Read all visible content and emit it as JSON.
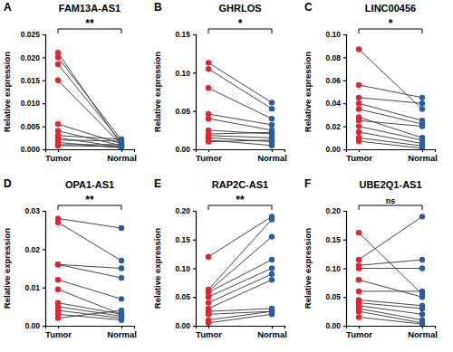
{
  "chart_data": [
    {
      "type": "paired",
      "panel": "A",
      "title": "FAM13A-AS1",
      "annotation": "**",
      "y_label": "Relative expression",
      "categories": [
        "Tumor",
        "Normal"
      ],
      "colors": [
        "#e8232d",
        "#2a5caa"
      ],
      "values": [
        [
          0.021,
          0.001
        ],
        [
          0.02,
          0.002
        ],
        [
          0.0185,
          0.0015
        ],
        [
          0.015,
          0.001
        ],
        [
          0.0055,
          0.0012
        ],
        [
          0.004,
          0.0008
        ],
        [
          0.003,
          0.0022
        ],
        [
          0.0025,
          0.0005
        ],
        [
          0.002,
          0.0018
        ],
        [
          0.0015,
          0.0003
        ],
        [
          0.001,
          0.001
        ],
        [
          0.0008,
          0.0006
        ]
      ],
      "ylim": [
        0,
        0.025
      ],
      "yticks": [
        {
          "value": 0,
          "label": "0.000"
        },
        {
          "value": 0.005,
          "label": "0.005"
        },
        {
          "value": 0.01,
          "label": "0.010"
        },
        {
          "value": 0.015,
          "label": "0.015"
        },
        {
          "value": 0.02,
          "label": "0.020"
        },
        {
          "value": 0.025,
          "label": "0.025"
        }
      ]
    },
    {
      "type": "paired",
      "panel": "B",
      "title": "GHRLOS",
      "annotation": "*",
      "y_label": "Relative expression",
      "categories": [
        "Tumor",
        "Normal"
      ],
      "colors": [
        "#e8232d",
        "#2a5caa"
      ],
      "values": [
        [
          0.113,
          0.061
        ],
        [
          0.105,
          0.053
        ],
        [
          0.08,
          0.04
        ],
        [
          0.046,
          0.032
        ],
        [
          0.04,
          0.025
        ],
        [
          0.025,
          0.02
        ],
        [
          0.02,
          0.022
        ],
        [
          0.018,
          0.015
        ],
        [
          0.015,
          0.01
        ],
        [
          0.012,
          0.005
        ],
        [
          0.01,
          0.012
        ]
      ],
      "ylim": [
        0,
        0.15
      ],
      "yticks": [
        {
          "value": 0,
          "label": "0.00"
        },
        {
          "value": 0.05,
          "label": "0.05"
        },
        {
          "value": 0.1,
          "label": "0.10"
        },
        {
          "value": 0.15,
          "label": "0.15"
        }
      ]
    },
    {
      "type": "paired",
      "panel": "C",
      "title": "LINC00456",
      "annotation": "*",
      "y_label": "Relative expression",
      "categories": [
        "Tumor",
        "Normal"
      ],
      "colors": [
        "#e8232d",
        "#2a5caa"
      ],
      "values": [
        [
          0.087,
          0.035
        ],
        [
          0.056,
          0.045
        ],
        [
          0.045,
          0.04
        ],
        [
          0.04,
          0.025
        ],
        [
          0.035,
          0.022
        ],
        [
          0.028,
          0.01
        ],
        [
          0.025,
          0.02
        ],
        [
          0.02,
          0.008
        ],
        [
          0.015,
          0.005
        ],
        [
          0.01,
          0.003
        ],
        [
          0.007,
          0.001
        ]
      ],
      "ylim": [
        0,
        0.1
      ],
      "yticks": [
        {
          "value": 0,
          "label": "0.00"
        },
        {
          "value": 0.02,
          "label": "0.02"
        },
        {
          "value": 0.04,
          "label": "0.04"
        },
        {
          "value": 0.06,
          "label": "0.06"
        },
        {
          "value": 0.08,
          "label": "0.08"
        },
        {
          "value": 0.1,
          "label": "0.10"
        }
      ]
    },
    {
      "type": "paired",
      "panel": "D",
      "title": "OPA1-AS1",
      "annotation": "**",
      "y_label": "Relative expression",
      "categories": [
        "Tumor",
        "Normal"
      ],
      "colors": [
        "#e8232d",
        "#2a5caa"
      ],
      "values": [
        [
          0.028,
          0.0255
        ],
        [
          0.027,
          0.017
        ],
        [
          0.016,
          0.015
        ],
        [
          0.016,
          0.0125
        ],
        [
          0.012,
          0.007
        ],
        [
          0.0095,
          0.003
        ],
        [
          0.006,
          0.003
        ],
        [
          0.005,
          0.0025
        ],
        [
          0.004,
          0.002
        ],
        [
          0.003,
          0.0015
        ],
        [
          0.002,
          0.004
        ]
      ],
      "ylim": [
        0,
        0.03
      ],
      "yticks": [
        {
          "value": 0,
          "label": "0.00"
        },
        {
          "value": 0.01,
          "label": "0.01"
        },
        {
          "value": 0.02,
          "label": "0.02"
        },
        {
          "value": 0.03,
          "label": "0.03"
        }
      ]
    },
    {
      "type": "paired",
      "panel": "E",
      "title": "RAP2C-AS1",
      "annotation": "**",
      "y_label": "Relative expression",
      "categories": [
        "Tumor",
        "Normal"
      ],
      "colors": [
        "#e8232d",
        "#2a5caa"
      ],
      "values": [
        [
          0.12,
          0.19
        ],
        [
          0.063,
          0.185
        ],
        [
          0.06,
          0.155
        ],
        [
          0.058,
          0.115
        ],
        [
          0.05,
          0.1
        ],
        [
          0.04,
          0.09
        ],
        [
          0.03,
          0.08
        ],
        [
          0.025,
          0.03
        ],
        [
          0.02,
          0.025
        ],
        [
          0.01,
          0.025
        ],
        [
          0.005,
          0.02
        ]
      ],
      "ylim": [
        0,
        0.2
      ],
      "yticks": [
        {
          "value": 0,
          "label": "0.00"
        },
        {
          "value": 0.05,
          "label": "0.05"
        },
        {
          "value": 0.1,
          "label": "0.10"
        },
        {
          "value": 0.15,
          "label": "0.15"
        },
        {
          "value": 0.2,
          "label": "0.20"
        }
      ]
    },
    {
      "type": "paired",
      "panel": "F",
      "title": "UBE2Q1-AS1",
      "annotation": "ns",
      "y_label": "Relative expression",
      "categories": [
        "Tumor",
        "Normal"
      ],
      "colors": [
        "#e8232d",
        "#2a5caa"
      ],
      "values": [
        [
          0.162,
          0.055
        ],
        [
          0.115,
          0.19
        ],
        [
          0.105,
          0.115
        ],
        [
          0.1,
          0.1
        ],
        [
          0.08,
          0.05
        ],
        [
          0.06,
          0.06
        ],
        [
          0.045,
          0.035
        ],
        [
          0.04,
          0.03
        ],
        [
          0.035,
          0.02
        ],
        [
          0.03,
          0.01
        ],
        [
          0.025,
          0.005
        ],
        [
          0.015,
          0.003
        ]
      ],
      "ylim": [
        0,
        0.2
      ],
      "yticks": [
        {
          "value": 0,
          "label": "0.00"
        },
        {
          "value": 0.05,
          "label": "0.05"
        },
        {
          "value": 0.1,
          "label": "0.10"
        },
        {
          "value": 0.15,
          "label": "0.15"
        },
        {
          "value": 0.2,
          "label": "0.20"
        }
      ]
    }
  ]
}
